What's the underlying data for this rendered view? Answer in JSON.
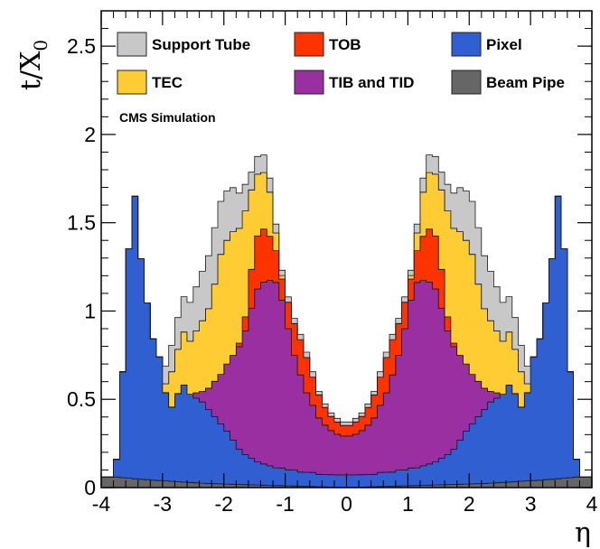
{
  "chart_data": {
    "type": "area",
    "stacked": true,
    "histogram_steps": true,
    "x_label": "η",
    "y_label": "t/X",
    "y_label_subscript": "0",
    "annotation": "CMS Simulation",
    "xlim": [
      -4,
      4
    ],
    "ylim": [
      0,
      2.7
    ],
    "x_ticks": [
      -4,
      -3,
      -2,
      -1,
      0,
      1,
      2,
      3,
      4
    ],
    "y_ticks": [
      0,
      0.5,
      1,
      1.5,
      2,
      2.5
    ],
    "y_tick_labels": [
      "0",
      "0.5",
      "1",
      "1.5",
      "2",
      "2.5"
    ],
    "grid": false,
    "legend_position": "top",
    "legend": [
      {
        "name": "Support Tube",
        "color": "#c8c8c8"
      },
      {
        "name": "TOB",
        "color": "#ff3300"
      },
      {
        "name": "Pixel",
        "color": "#2f5fd0"
      },
      {
        "name": "TEC",
        "color": "#ffcc33"
      },
      {
        "name": "TIB and TID",
        "color": "#992fa0"
      },
      {
        "name": "Beam Pipe",
        "color": "#666666"
      }
    ],
    "x": [
      0.05,
      0.15,
      0.25,
      0.35,
      0.45,
      0.55,
      0.65,
      0.75,
      0.85,
      0.95,
      1.05,
      1.15,
      1.25,
      1.35,
      1.45,
      1.55,
      1.65,
      1.75,
      1.85,
      1.95,
      2.05,
      2.15,
      2.25,
      2.35,
      2.45,
      2.55,
      2.65,
      2.75,
      2.85,
      2.95,
      3.05,
      3.15,
      3.25,
      3.35,
      3.45,
      3.55,
      3.65,
      3.75,
      3.85,
      3.95
    ],
    "series": [
      {
        "name": "Beam Pipe",
        "color": "#666666",
        "values": [
          0.002,
          0.002,
          0.003,
          0.004,
          0.005,
          0.006,
          0.007,
          0.008,
          0.009,
          0.01,
          0.011,
          0.012,
          0.013,
          0.014,
          0.015,
          0.016,
          0.017,
          0.018,
          0.019,
          0.02,
          0.021,
          0.022,
          0.023,
          0.025,
          0.027,
          0.029,
          0.031,
          0.033,
          0.036,
          0.038,
          0.04,
          0.042,
          0.045,
          0.047,
          0.05,
          0.053,
          0.056,
          0.06,
          0.06,
          0.06
        ]
      },
      {
        "name": "Pixel",
        "color": "#2f5fd0",
        "values": [
          0.07,
          0.07,
          0.07,
          0.07,
          0.07,
          0.08,
          0.08,
          0.08,
          0.09,
          0.09,
          0.1,
          0.1,
          0.11,
          0.12,
          0.13,
          0.15,
          0.17,
          0.2,
          0.25,
          0.3,
          0.34,
          0.38,
          0.42,
          0.46,
          0.48,
          0.5,
          0.55,
          0.5,
          0.42,
          0.5,
          0.7,
          0.8,
          1.0,
          1.25,
          1.6,
          1.3,
          0.6,
          0.1,
          0.0,
          0.0
        ]
      },
      {
        "name": "TIB and TID",
        "color": "#992fa0",
        "values": [
          0.22,
          0.23,
          0.25,
          0.28,
          0.32,
          0.38,
          0.45,
          0.55,
          0.65,
          0.8,
          0.95,
          1.05,
          1.05,
          1.03,
          0.98,
          0.85,
          0.7,
          0.58,
          0.48,
          0.38,
          0.28,
          0.2,
          0.12,
          0.06,
          0.03,
          0.0,
          0.0,
          0.0,
          0.0,
          0.0,
          0.0,
          0.0,
          0.0,
          0.0,
          0.0,
          0.0,
          0.0,
          0.0,
          0.0,
          0.0
        ]
      },
      {
        "name": "TOB",
        "color": "#ff3300",
        "values": [
          0.06,
          0.07,
          0.08,
          0.1,
          0.13,
          0.16,
          0.2,
          0.2,
          0.18,
          0.15,
          0.12,
          0.18,
          0.25,
          0.3,
          0.3,
          0.22,
          0.08,
          0.02,
          0.0,
          0.0,
          0.0,
          0.0,
          0.0,
          0.0,
          0.0,
          0.0,
          0.0,
          0.0,
          0.0,
          0.0,
          0.0,
          0.0,
          0.0,
          0.0,
          0.0,
          0.0,
          0.0,
          0.0,
          0.0,
          0.0
        ]
      },
      {
        "name": "TEC",
        "color": "#ffcc33",
        "values": [
          0.0,
          0.0,
          0.0,
          0.0,
          0.0,
          0.0,
          0.0,
          0.0,
          0.0,
          0.0,
          0.02,
          0.1,
          0.25,
          0.32,
          0.35,
          0.45,
          0.6,
          0.65,
          0.7,
          0.7,
          0.68,
          0.55,
          0.45,
          0.4,
          0.35,
          0.3,
          0.3,
          0.25,
          0.2,
          0.05,
          0.0,
          0.0,
          0.0,
          0.0,
          0.0,
          0.0,
          0.0,
          0.0,
          0.0,
          0.0
        ]
      },
      {
        "name": "Support Tube",
        "color": "#c8c8c8",
        "values": [
          0.02,
          0.02,
          0.02,
          0.02,
          0.02,
          0.03,
          0.03,
          0.03,
          0.03,
          0.03,
          0.03,
          0.05,
          0.08,
          0.1,
          0.1,
          0.1,
          0.15,
          0.2,
          0.25,
          0.28,
          0.3,
          0.32,
          0.3,
          0.28,
          0.25,
          0.22,
          0.2,
          0.18,
          0.15,
          0.1,
          0.0,
          0.0,
          0.0,
          0.0,
          0.0,
          0.0,
          0.0,
          0.0,
          0.0,
          0.0
        ]
      }
    ]
  }
}
